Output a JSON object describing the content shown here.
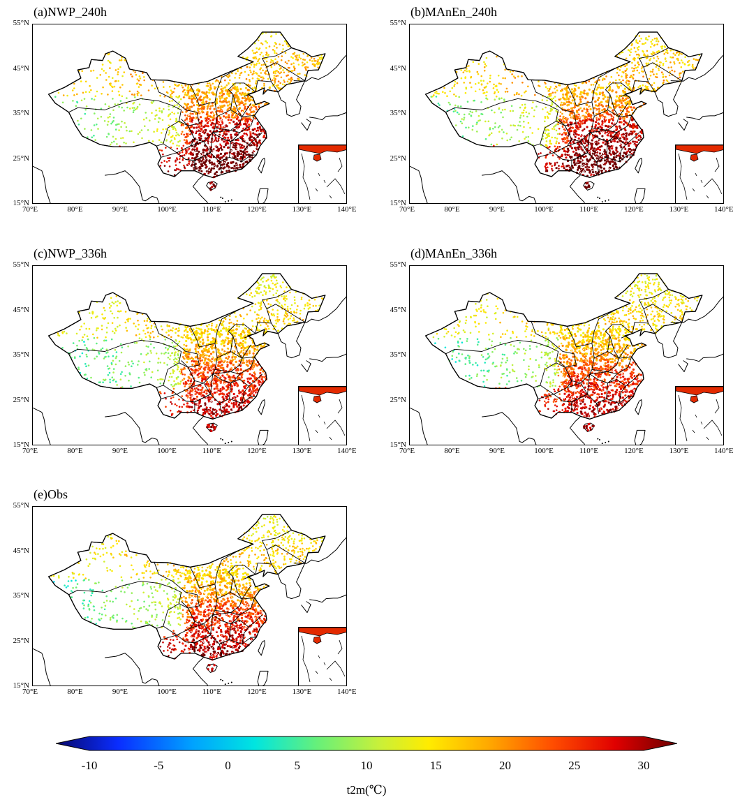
{
  "panels": [
    {
      "id": "a",
      "title": "(a)NWP_240h",
      "cold": "normal"
    },
    {
      "id": "b",
      "title": "(b)MAnEn_240h",
      "cold": "normal"
    },
    {
      "id": "c",
      "title": "(c)NWP_336h",
      "cold": "warm"
    },
    {
      "id": "d",
      "title": "(d)MAnEn_336h",
      "cold": "warm"
    },
    {
      "id": "e",
      "title": "(e)Obs",
      "cold": "obs"
    }
  ],
  "lat_ticks": [
    "55°N",
    "45°N",
    "35°N",
    "25°N",
    "15°N"
  ],
  "lon_ticks": [
    "70°E",
    "80°E",
    "90°E",
    "100°E",
    "110°E",
    "120°E",
    "130°E",
    "140°E"
  ],
  "colorbar": {
    "variable_label": "t2m(℃)",
    "min": -10,
    "max": 30,
    "ticks": [
      "-10",
      "-5",
      "0",
      "5",
      "10",
      "15",
      "20",
      "25",
      "30"
    ],
    "colors": [
      "#08086b",
      "#0a2dff",
      "#00a2ff",
      "#00e5e0",
      "#66f07a",
      "#c8f03a",
      "#ffec00",
      "#ffa600",
      "#ff4d00",
      "#e00000",
      "#6b0000"
    ]
  }
}
